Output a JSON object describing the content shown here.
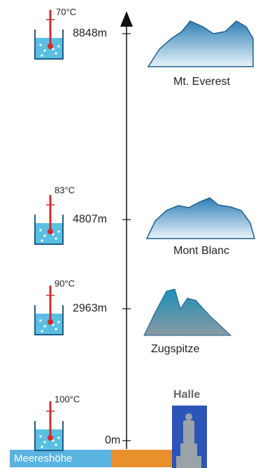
{
  "levels": [
    {
      "temperature": "70°C",
      "height": "8848m",
      "name": "Mt. Everest"
    },
    {
      "temperature": "83°C",
      "height": "4807m",
      "name": "Mont Blanc"
    },
    {
      "temperature": "90°C",
      "height": "2963m",
      "name": "Zugspitze"
    },
    {
      "temperature": "100°C",
      "height": "0m",
      "name": "Halle"
    }
  ],
  "sea_level_label": "Meereshöhe"
}
